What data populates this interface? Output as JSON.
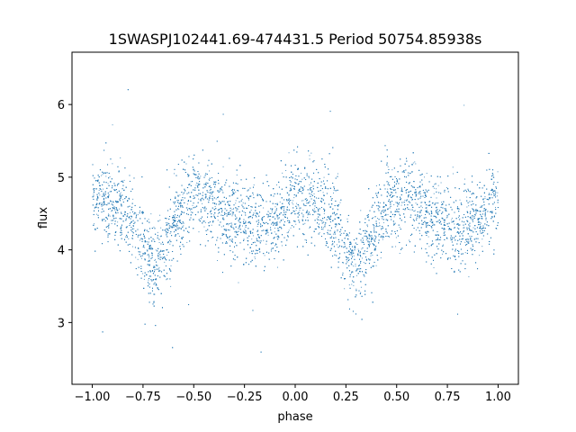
{
  "chart_data": {
    "type": "scatter",
    "title": "1SWASPJ102441.69-474431.5 Period 50754.85938s",
    "xlabel": "phase",
    "ylabel": "flux",
    "xlim": [
      -1.1,
      1.1
    ],
    "ylim": [
      2.15,
      6.72
    ],
    "xticks": [
      -1.0,
      -0.75,
      -0.5,
      -0.25,
      0.0,
      0.25,
      0.5,
      0.75,
      1.0
    ],
    "xtick_labels": [
      "−1.00",
      "−0.75",
      "−0.50",
      "−0.25",
      "0.00",
      "0.25",
      "0.50",
      "0.75",
      "1.00"
    ],
    "yticks": [
      3,
      4,
      5,
      6
    ],
    "ytick_labels": [
      "3",
      "4",
      "5",
      "6"
    ],
    "grid": false,
    "marker_color": "#1f77b4",
    "series": [
      {
        "profile": {
          "phase": [
            0.0,
            0.05,
            0.1,
            0.15,
            0.2,
            0.25,
            0.3,
            0.35,
            0.4,
            0.45,
            0.5,
            0.55,
            0.6,
            0.65,
            0.7,
            0.75,
            0.8,
            0.85,
            0.9,
            0.95,
            1.0
          ],
          "flux": [
            4.7,
            4.72,
            4.65,
            4.55,
            4.35,
            4.05,
            3.8,
            3.95,
            4.35,
            4.65,
            4.72,
            4.7,
            4.6,
            4.5,
            4.42,
            4.35,
            4.3,
            4.32,
            4.4,
            4.55,
            4.7
          ],
          "scatter": 0.28
        },
        "points": 9000
      }
    ]
  }
}
